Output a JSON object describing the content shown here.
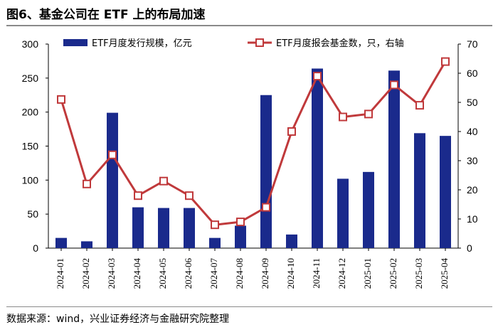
{
  "header": {
    "title": "图6、基金公司在 ETF 上的布局加速"
  },
  "footer": {
    "source": "数据来源：wind，兴业证券经济与金融研究院整理"
  },
  "colors": {
    "bar": "#1a2a8c",
    "line": "#c0393b",
    "rule": "#8a8a8a"
  },
  "chart_data": {
    "type": "bar",
    "title": "图6、基金公司在 ETF 上的布局加速",
    "categories": [
      "2024-01",
      "2024-02",
      "2024-03",
      "2024-04",
      "2024-05",
      "2024-06",
      "2024-07",
      "2024-08",
      "2024-09",
      "2024-10",
      "2024-11",
      "2024-12",
      "2025-01",
      "2025-02",
      "2025-03",
      "2025-04"
    ],
    "series": [
      {
        "name": "ETF月度发行规模，亿元",
        "type": "bar",
        "axis": "left",
        "values": [
          15,
          10,
          199,
          60,
          59,
          59,
          15,
          33,
          225,
          20,
          264,
          102,
          112,
          261,
          169,
          165
        ]
      },
      {
        "name": "ETF月度报会基金数，只，右轴",
        "type": "line",
        "axis": "right",
        "values": [
          51,
          22,
          32,
          18,
          23,
          18,
          8,
          9,
          14,
          40,
          59,
          45,
          46,
          56,
          49,
          64
        ]
      }
    ],
    "y_left": {
      "min": 0,
      "max": 300,
      "ticks": [
        0,
        50,
        100,
        150,
        200,
        250,
        300
      ]
    },
    "y_right": {
      "min": 0,
      "max": 70,
      "ticks": [
        0,
        10,
        20,
        30,
        40,
        50,
        60,
        70
      ]
    },
    "grid": false,
    "legend_position": "top"
  }
}
